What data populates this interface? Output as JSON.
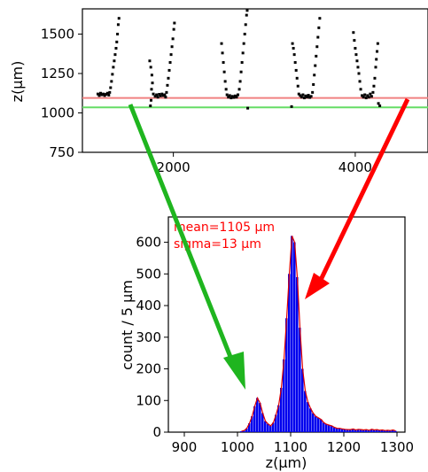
{
  "chart_data": [
    {
      "type": "scatter",
      "title": "",
      "xlabel": "",
      "ylabel": "z(μm)",
      "xlim": [
        1000,
        4800
      ],
      "ylim": [
        750,
        1660
      ],
      "xticks": [
        2000,
        4000
      ],
      "yticks": [
        750,
        1000,
        1250,
        1500
      ],
      "xtick_labels": [
        "2000",
        "4000"
      ],
      "ytick_labels": [
        "750",
        "1000",
        "1250",
        "1500"
      ],
      "hlines": [
        {
          "y": 1095,
          "color": "#f08080"
        },
        {
          "y": 1035,
          "color": "#66dd66"
        }
      ],
      "point_color": "#000000",
      "points": [
        [
          1170,
          1120
        ],
        [
          1185,
          1110
        ],
        [
          1200,
          1125
        ],
        [
          1215,
          1115
        ],
        [
          1230,
          1120
        ],
        [
          1245,
          1110
        ],
        [
          1260,
          1118
        ],
        [
          1275,
          1125
        ],
        [
          1290,
          1113
        ],
        [
          1300,
          1130
        ],
        [
          1310,
          1160
        ],
        [
          1320,
          1200
        ],
        [
          1330,
          1245
        ],
        [
          1340,
          1290
        ],
        [
          1350,
          1330
        ],
        [
          1360,
          1370
        ],
        [
          1370,
          1410
        ],
        [
          1378,
          1450
        ],
        [
          1386,
          1500
        ],
        [
          1394,
          1560
        ],
        [
          1402,
          1600
        ],
        [
          1740,
          1330
        ],
        [
          1752,
          1290
        ],
        [
          1764,
          1240
        ],
        [
          1770,
          1190
        ],
        [
          1760,
          1150
        ],
        [
          1755,
          1080
        ],
        [
          1748,
          1045
        ],
        [
          1780,
          1120
        ],
        [
          1800,
          1105
        ],
        [
          1815,
          1115
        ],
        [
          1830,
          1100
        ],
        [
          1845,
          1118
        ],
        [
          1860,
          1108
        ],
        [
          1875,
          1120
        ],
        [
          1890,
          1110
        ],
        [
          1905,
          1115
        ],
        [
          1915,
          1100
        ],
        [
          1925,
          1130
        ],
        [
          1935,
          1175
        ],
        [
          1945,
          1220
        ],
        [
          1955,
          1270
        ],
        [
          1965,
          1320
        ],
        [
          1975,
          1370
        ],
        [
          1985,
          1420
        ],
        [
          1995,
          1470
        ],
        [
          2005,
          1530
        ],
        [
          2012,
          1570
        ],
        [
          2530,
          1440
        ],
        [
          2540,
          1380
        ],
        [
          2550,
          1320
        ],
        [
          2560,
          1260
        ],
        [
          2570,
          1200
        ],
        [
          2580,
          1150
        ],
        [
          2590,
          1115
        ],
        [
          2605,
          1100
        ],
        [
          2620,
          1110
        ],
        [
          2635,
          1095
        ],
        [
          2650,
          1105
        ],
        [
          2665,
          1098
        ],
        [
          2680,
          1108
        ],
        [
          2695,
          1100
        ],
        [
          2710,
          1115
        ],
        [
          2725,
          1150
        ],
        [
          2735,
          1200
        ],
        [
          2745,
          1260
        ],
        [
          2755,
          1320
        ],
        [
          2765,
          1380
        ],
        [
          2775,
          1440
        ],
        [
          2785,
          1500
        ],
        [
          2795,
          1560
        ],
        [
          2805,
          1620
        ],
        [
          2812,
          1650
        ],
        [
          2818,
          1030
        ],
        [
          3310,
          1440
        ],
        [
          3320,
          1410
        ],
        [
          3330,
          1370
        ],
        [
          3340,
          1320
        ],
        [
          3350,
          1270
        ],
        [
          3360,
          1220
        ],
        [
          3370,
          1170
        ],
        [
          3380,
          1120
        ],
        [
          3395,
          1110
        ],
        [
          3410,
          1100
        ],
        [
          3425,
          1115
        ],
        [
          3440,
          1095
        ],
        [
          3455,
          1108
        ],
        [
          3470,
          1100
        ],
        [
          3485,
          1112
        ],
        [
          3500,
          1098
        ],
        [
          3515,
          1105
        ],
        [
          3530,
          1130
        ],
        [
          3540,
          1180
        ],
        [
          3550,
          1240
        ],
        [
          3560,
          1300
        ],
        [
          3570,
          1360
        ],
        [
          3580,
          1420
        ],
        [
          3590,
          1480
        ],
        [
          3600,
          1540
        ],
        [
          3610,
          1600
        ],
        [
          3300,
          1040
        ],
        [
          3980,
          1510
        ],
        [
          3990,
          1460
        ],
        [
          4000,
          1410
        ],
        [
          4010,
          1370
        ],
        [
          4020,
          1330
        ],
        [
          4030,
          1290
        ],
        [
          4040,
          1250
        ],
        [
          4050,
          1200
        ],
        [
          4060,
          1150
        ],
        [
          4075,
          1110
        ],
        [
          4090,
          1100
        ],
        [
          4105,
          1115
        ],
        [
          4120,
          1095
        ],
        [
          4135,
          1110
        ],
        [
          4150,
          1100
        ],
        [
          4165,
          1120
        ],
        [
          4180,
          1105
        ],
        [
          4195,
          1130
        ],
        [
          4205,
          1170
        ],
        [
          4215,
          1220
        ],
        [
          4225,
          1290
        ],
        [
          4232,
          1340
        ],
        [
          4240,
          1390
        ],
        [
          4248,
          1440
        ],
        [
          4255,
          1060
        ],
        [
          4270,
          1045
        ]
      ]
    },
    {
      "type": "bar",
      "title": "",
      "xlabel": "z(μm)",
      "ylabel": "count / 5 μm",
      "xlim": [
        870,
        1315
      ],
      "ylim": [
        0,
        680
      ],
      "xticks": [
        900,
        1000,
        1100,
        1200,
        1300
      ],
      "yticks": [
        0,
        100,
        200,
        300,
        400,
        500,
        600
      ],
      "xtick_labels": [
        "900",
        "1000",
        "1100",
        "1200",
        "1300"
      ],
      "ytick_labels": [
        "0",
        "100",
        "200",
        "300",
        "400",
        "500",
        "600"
      ],
      "bin_width": 5,
      "bar_color": "#0000ee",
      "fit_color": "#dd0000",
      "annotations": [
        "mean=1105 μm",
        "sigma=13 μm"
      ],
      "bins": [
        [
          1005,
          3
        ],
        [
          1010,
          5
        ],
        [
          1015,
          12
        ],
        [
          1020,
          28
        ],
        [
          1025,
          50
        ],
        [
          1030,
          82
        ],
        [
          1035,
          108
        ],
        [
          1040,
          92
        ],
        [
          1045,
          60
        ],
        [
          1050,
          35
        ],
        [
          1055,
          26
        ],
        [
          1060,
          20
        ],
        [
          1065,
          30
        ],
        [
          1070,
          55
        ],
        [
          1075,
          85
        ],
        [
          1080,
          140
        ],
        [
          1085,
          230
        ],
        [
          1090,
          360
        ],
        [
          1095,
          500
        ],
        [
          1100,
          620
        ],
        [
          1105,
          600
        ],
        [
          1110,
          490
        ],
        [
          1115,
          330
        ],
        [
          1120,
          200
        ],
        [
          1125,
          130
        ],
        [
          1130,
          95
        ],
        [
          1135,
          75
        ],
        [
          1140,
          60
        ],
        [
          1145,
          50
        ],
        [
          1150,
          45
        ],
        [
          1155,
          40
        ],
        [
          1160,
          30
        ],
        [
          1165,
          25
        ],
        [
          1170,
          22
        ],
        [
          1175,
          20
        ],
        [
          1180,
          15
        ],
        [
          1185,
          12
        ],
        [
          1190,
          12
        ],
        [
          1195,
          10
        ],
        [
          1200,
          9
        ],
        [
          1205,
          8
        ],
        [
          1210,
          8
        ],
        [
          1215,
          10
        ],
        [
          1220,
          7
        ],
        [
          1225,
          9
        ],
        [
          1230,
          8
        ],
        [
          1235,
          7
        ],
        [
          1240,
          8
        ],
        [
          1245,
          6
        ],
        [
          1250,
          9
        ],
        [
          1255,
          7
        ],
        [
          1260,
          8
        ],
        [
          1265,
          6
        ],
        [
          1270,
          7
        ],
        [
          1275,
          5
        ],
        [
          1280,
          6
        ],
        [
          1285,
          5
        ],
        [
          1290,
          7
        ],
        [
          1295,
          4
        ]
      ]
    }
  ]
}
